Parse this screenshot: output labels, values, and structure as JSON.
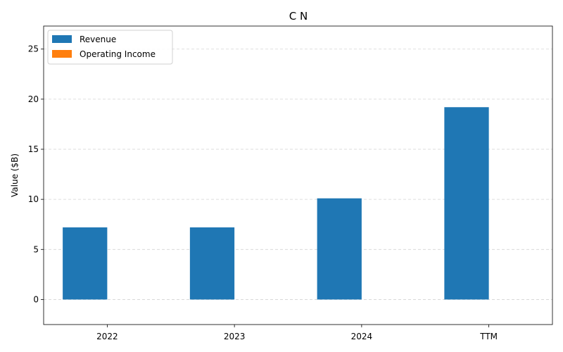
{
  "chart_data": {
    "type": "bar",
    "title": "C N",
    "xlabel": "",
    "ylabel": "Value ($B)",
    "categories": [
      "2022",
      "2023",
      "2024",
      "TTM"
    ],
    "series": [
      {
        "name": "Revenue",
        "color": "#1f77b4",
        "values": [
          7.2,
          7.2,
          10.1,
          19.2
        ]
      },
      {
        "name": "Operating Income",
        "color": "#ff7f0e",
        "values": [
          0,
          0,
          0,
          0
        ]
      }
    ],
    "ylim": [
      -2.5,
      27.3
    ],
    "yticks": [
      0,
      5,
      10,
      15,
      20,
      25
    ],
    "grid": true,
    "legend_position": "top-left"
  }
}
